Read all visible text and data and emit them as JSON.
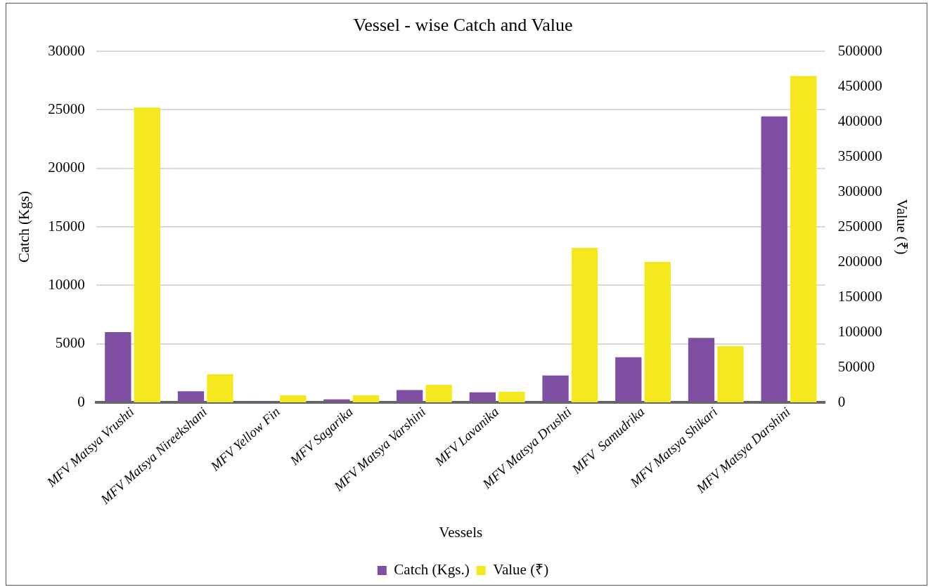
{
  "chart_data": {
    "type": "bar",
    "title": "Vessel - wise Catch and Value",
    "xlabel": "Vessels",
    "ylabel": "Catch (Kgs)",
    "y2label": "Value (₹)",
    "categories": [
      "MFV Matsya Vrushti",
      "MFV Matsya Nireekshani",
      "MFV Yellow Fin",
      "MFV Sagarika",
      "MFV Matsya Varshini",
      "MFV Lavanika",
      "MFV Matsya Drushti",
      "MFV  Samudrika",
      "MFV Matsya Shikari",
      "MFV Matsya Darshini"
    ],
    "series": [
      {
        "name": "Catch (Kgs.)",
        "color": "#7f4fa3",
        "values": [
          6000,
          950,
          100,
          250,
          1050,
          850,
          2300,
          3850,
          5500,
          24450
        ]
      },
      {
        "name": "Value (₹)",
        "color": "#f5e81e",
        "axis": "y2",
        "values": [
          420000,
          40000,
          10000,
          10000,
          25000,
          15000,
          220000,
          200000,
          80000,
          465000
        ]
      }
    ],
    "ylim": [
      0,
      30000
    ],
    "yticks": [
      0,
      5000,
      10000,
      15000,
      20000,
      25000,
      30000
    ],
    "y2lim": [
      0,
      500000
    ],
    "y2ticks": [
      0,
      50000,
      100000,
      150000,
      200000,
      250000,
      300000,
      350000,
      400000,
      450000,
      500000
    ],
    "grid": "y",
    "legend": "bottom"
  }
}
